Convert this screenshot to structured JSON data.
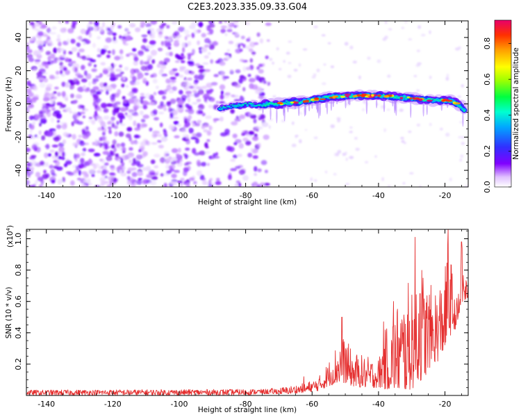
{
  "figure_title": "C2E3.2023.335.09.33.G04",
  "chart_data": [
    {
      "type": "heatmap",
      "name": "spectrogram",
      "xlabel": "Height of straight line (km)",
      "ylabel": "Frequency (Hz)",
      "xlim": [
        -146,
        -13
      ],
      "ylim": [
        -50,
        50
      ],
      "xticks": [
        -140,
        -120,
        -100,
        -80,
        -60,
        -40,
        -20
      ],
      "xtick_labels": [
        "-140",
        "-120",
        "-100",
        "-80",
        "-60",
        "-40",
        "-20"
      ],
      "yticks": [
        -40,
        -20,
        0,
        20,
        40
      ],
      "ytick_labels": [
        "-40",
        "-20",
        "0",
        "20",
        "40"
      ],
      "noise_region_x": [
        -146,
        -73
      ],
      "signal_trace": {
        "x": [
          -88,
          -85,
          -82,
          -79,
          -76,
          -73,
          -70,
          -67,
          -64,
          -61,
          -58,
          -55,
          -52,
          -49,
          -46,
          -43,
          -40,
          -37,
          -34,
          -31,
          -28,
          -25,
          -22,
          -19,
          -17,
          -15,
          -14
        ],
        "y": [
          -3,
          -1.5,
          -1,
          0,
          -1,
          0,
          0,
          1,
          1,
          2,
          3,
          4,
          4.5,
          5,
          5,
          5,
          5,
          4.5,
          4,
          3.5,
          3,
          2.5,
          2,
          2,
          1,
          -2,
          -4
        ]
      },
      "colorbar": {
        "label": "Normalized spectral amplitude",
        "ticks": [
          0.0,
          0.2,
          0.4,
          0.6,
          0.8
        ],
        "tick_labels": [
          "0.0",
          "0.2",
          "0.4",
          "0.6",
          "0.8"
        ],
        "range": [
          0,
          0.93
        ],
        "colors": [
          "#ffffff",
          "#c070ff",
          "#8000ff",
          "#2020ff",
          "#00c8ff",
          "#00ff60",
          "#a0ff00",
          "#ffff00",
          "#ffa000",
          "#ff3000",
          "#e8006a"
        ]
      }
    },
    {
      "type": "line",
      "name": "snr",
      "xlabel": "Height of straight line (km)",
      "ylabel": "SNR (10 * v/v)",
      "scale_label": "(x10",
      "scale_exponent": "4",
      "scale_suffix": ")",
      "xlim": [
        -146,
        -13
      ],
      "ylim": [
        0,
        1.06
      ],
      "xticks": [
        -140,
        -120,
        -100,
        -80,
        -60,
        -40,
        -20
      ],
      "xtick_labels": [
        "-140",
        "-120",
        "-100",
        "-80",
        "-60",
        "-40",
        "-20"
      ],
      "yticks": [
        0.2,
        0.4,
        0.6,
        0.8,
        1.0
      ],
      "ytick_labels": [
        "0.2",
        "0.4",
        "0.6",
        "0.8",
        "1.0"
      ],
      "color": "#e53030",
      "envelope": {
        "x": [
          -146,
          -80,
          -75,
          -70,
          -67,
          -62,
          -58,
          -55,
          -52,
          -50,
          -48,
          -45,
          -42,
          -40,
          -38,
          -36,
          -34,
          -32,
          -30,
          -28,
          -26,
          -24,
          -22,
          -20,
          -19,
          -18,
          -17,
          -16,
          -15,
          -14,
          -13
        ],
        "lo": [
          0.0,
          0.0,
          0.01,
          0.01,
          0.01,
          0.02,
          0.03,
          0.06,
          0.08,
          0.08,
          0.06,
          0.05,
          0.05,
          0.05,
          0.04,
          0.04,
          0.03,
          0.03,
          0.04,
          0.08,
          0.12,
          0.2,
          0.22,
          0.3,
          0.35,
          0.4,
          0.42,
          0.45,
          0.55,
          0.6,
          0.62
        ],
        "hi": [
          0.035,
          0.04,
          0.04,
          0.05,
          0.06,
          0.08,
          0.12,
          0.22,
          0.36,
          0.38,
          0.28,
          0.26,
          0.24,
          0.24,
          0.42,
          0.52,
          0.62,
          0.65,
          0.8,
          1.0,
          0.75,
          0.7,
          0.72,
          0.8,
          1.05,
          0.85,
          0.6,
          0.65,
          0.98,
          0.78,
          0.72
        ]
      },
      "peaks": [
        {
          "x": -62.5,
          "y": 0.12
        },
        {
          "x": -51,
          "y": 0.5
        },
        {
          "x": -38.5,
          "y": 0.47
        },
        {
          "x": -35.5,
          "y": 0.6
        },
        {
          "x": -29,
          "y": 1.01
        },
        {
          "x": -27.5,
          "y": 0.65
        },
        {
          "x": -19,
          "y": 1.06
        },
        {
          "x": -15,
          "y": 0.98
        },
        {
          "x": -13.5,
          "y": 0.72
        }
      ]
    }
  ]
}
